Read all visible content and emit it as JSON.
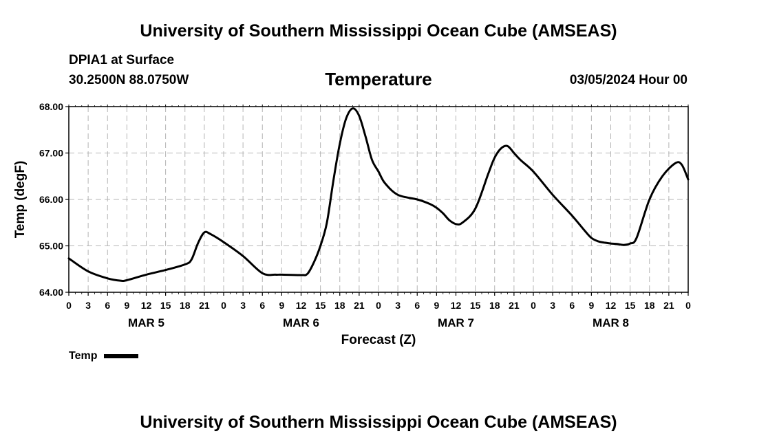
{
  "header": {
    "title": "University of Southern Mississippi Ocean Cube (AMSEAS)",
    "station": "DPIA1 at Surface",
    "coords": "30.2500N  88.0750W",
    "variable_title": "Temperature",
    "datetime": "03/05/2024 Hour 00"
  },
  "footer": {
    "title": "University of Southern Mississippi Ocean Cube (AMSEAS)"
  },
  "colors": {
    "line": "#000000",
    "grid": "#b4b4b4",
    "background": "#ffffff"
  },
  "chart_data": {
    "type": "line",
    "title": "Temperature",
    "xlabel": "Forecast (Z)",
    "ylabel": "Temp (degF)",
    "ylim": [
      64.0,
      68.0
    ],
    "xlim": [
      0,
      96
    ],
    "y_ticks": [
      "64.00",
      "65.00",
      "66.00",
      "67.00",
      "68.00"
    ],
    "x_tick_labels": [
      "0",
      "3",
      "6",
      "9",
      "12",
      "15",
      "18",
      "21",
      "0",
      "3",
      "6",
      "9",
      "12",
      "15",
      "18",
      "21",
      "0",
      "3",
      "6",
      "9",
      "12",
      "15",
      "18",
      "21",
      "0",
      "3",
      "6",
      "9",
      "12",
      "15",
      "18",
      "21",
      "0"
    ],
    "day_labels": [
      {
        "label": "MAR 5",
        "hour": 12
      },
      {
        "label": "MAR 6",
        "hour": 36
      },
      {
        "label": "MAR 7",
        "hour": 60
      },
      {
        "label": "MAR 8",
        "hour": 84
      }
    ],
    "grid": true,
    "legend": {
      "position": "bottom-left",
      "entries": [
        "Temp"
      ]
    },
    "series": [
      {
        "name": "Temp",
        "x": [
          0,
          3,
          6,
          8,
          9,
          12,
          15,
          18,
          19,
          20,
          21,
          22,
          24,
          27,
          30,
          32,
          33,
          36,
          37,
          38,
          39,
          40,
          41,
          42,
          43,
          44,
          45,
          46,
          47,
          48,
          49,
          51,
          54,
          56,
          57,
          58,
          59,
          60,
          61,
          63,
          65,
          66,
          67,
          68,
          69,
          70,
          72,
          75,
          78,
          80,
          81,
          82,
          83,
          84,
          85,
          86,
          87,
          88,
          90,
          92,
          94,
          95,
          96
        ],
        "values": [
          64.73,
          64.45,
          64.3,
          64.25,
          64.26,
          64.38,
          64.48,
          64.6,
          64.7,
          65.05,
          65.29,
          65.25,
          65.08,
          64.78,
          64.41,
          64.38,
          64.38,
          64.37,
          64.4,
          64.65,
          65.0,
          65.5,
          66.4,
          67.2,
          67.75,
          67.96,
          67.8,
          67.35,
          66.85,
          66.6,
          66.35,
          66.1,
          66.0,
          65.9,
          65.82,
          65.7,
          65.55,
          65.47,
          65.5,
          65.8,
          66.55,
          66.9,
          67.1,
          67.15,
          67.0,
          66.85,
          66.6,
          66.1,
          65.65,
          65.32,
          65.17,
          65.1,
          65.07,
          65.05,
          65.04,
          65.02,
          65.05,
          65.17,
          66.0,
          66.5,
          66.78,
          66.75,
          66.43
        ]
      }
    ]
  }
}
